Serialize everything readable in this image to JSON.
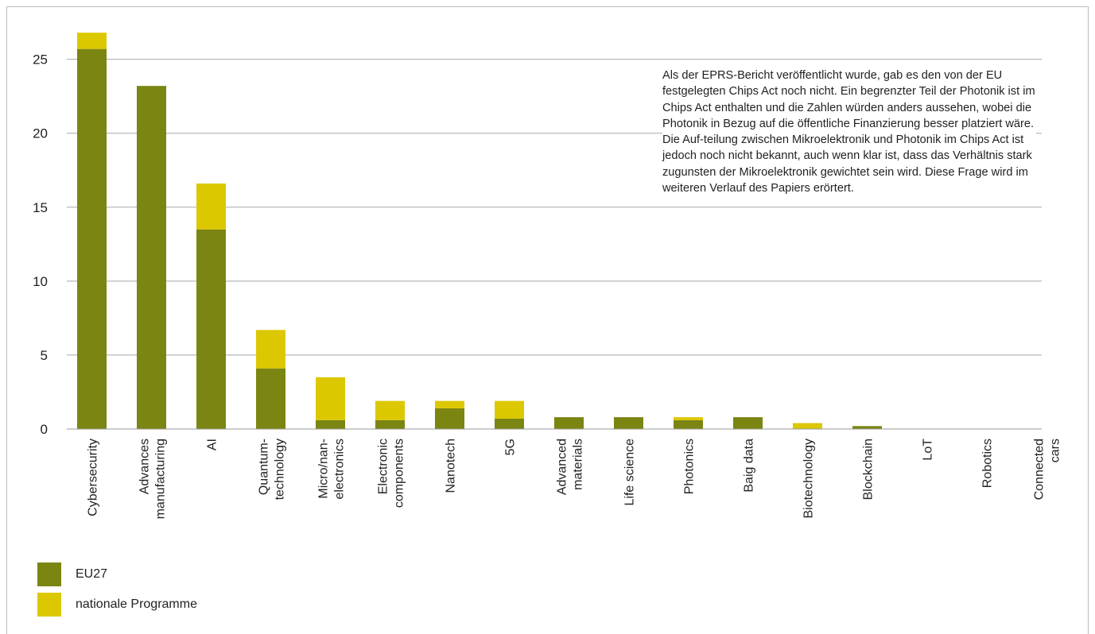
{
  "chart_data": {
    "type": "bar",
    "stacked": true,
    "categories": [
      "Cybersecurity",
      "Advances manufacturing",
      "AI",
      "Quantum-technology",
      "Micro/nan-electronics",
      "Electronic components",
      "Nanotech",
      "5G",
      "Advanced materials",
      "Life science",
      "Photonics",
      "Baig data",
      "Biotechnology",
      "Blockchain",
      "LoT",
      "Robotics",
      "Connected cars"
    ],
    "category_lines": [
      [
        "Cybersecurity"
      ],
      [
        "Advances",
        "manufacturing"
      ],
      [
        "AI"
      ],
      [
        "Quantum-",
        "technology"
      ],
      [
        "Micro/nan-",
        "electronics"
      ],
      [
        "Electronic",
        "components"
      ],
      [
        "Nanotech"
      ],
      [
        "5G"
      ],
      [
        "Advanced",
        "materials"
      ],
      [
        "Life science"
      ],
      [
        "Photonics"
      ],
      [
        "Baig data"
      ],
      [
        "Biotechnology"
      ],
      [
        "Blockchain"
      ],
      [
        "LoT"
      ],
      [
        "Robotics"
      ],
      [
        "Connected",
        "cars"
      ]
    ],
    "series": [
      {
        "name": "EU27",
        "color": "#7b8512",
        "values": [
          25.7,
          23.2,
          13.5,
          4.1,
          0.6,
          0.6,
          1.4,
          0.7,
          0.8,
          0.8,
          0.6,
          0.8,
          0.0,
          0.2,
          0.0,
          0.0,
          0.0
        ]
      },
      {
        "name": "nationale Programme",
        "color": "#dcc800",
        "values": [
          1.1,
          0.0,
          3.1,
          2.6,
          2.9,
          1.3,
          0.5,
          1.2,
          0.0,
          0.0,
          0.2,
          0.0,
          0.4,
          0.0,
          0.0,
          0.0,
          0.0
        ]
      }
    ],
    "yticks": [
      0,
      5,
      10,
      15,
      20,
      25
    ],
    "ylim": [
      0,
      27.4
    ],
    "grid": true,
    "legend_position": "bottom-left",
    "annotation": "Als der EPRS-Bericht veröffentlicht wurde, gab es den von der EU festgelegten Chips Act noch nicht. Ein begrenzter Teil der Photonik ist im Chips Act enthalten und die Zahlen würden anders aussehen, wobei die Photonik in Bezug auf die öffentliche Finanzierung besser platziert wäre. Die Auf-teilung zwischen Mikroelektronik und Photonik im Chips Act ist jedoch noch nicht bekannt, auch wenn klar ist, dass das Verhältnis stark zugunsten der Mikroelektronik gewichtet sein wird. Diese Frage wird im weiteren Verlauf des Papiers erörtert."
  }
}
